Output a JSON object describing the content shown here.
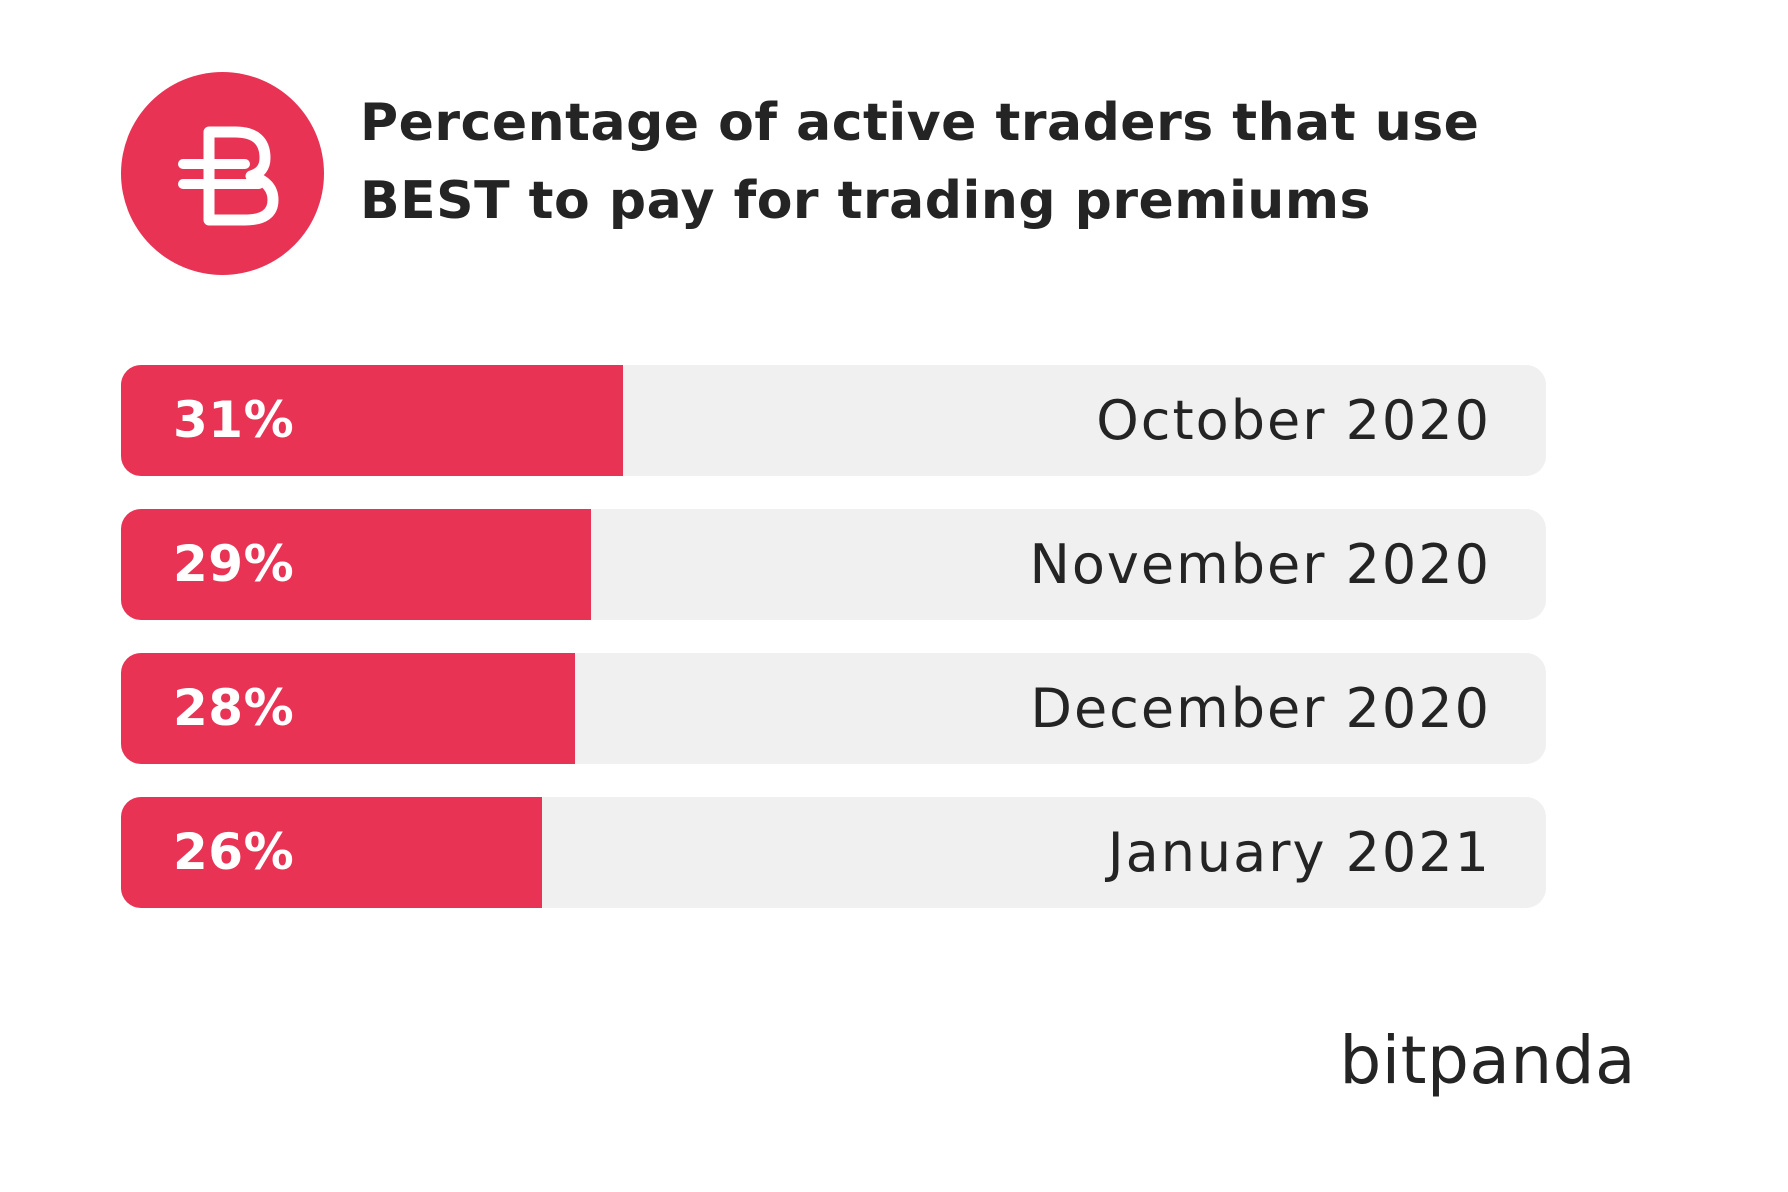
{
  "title_line1": "Percentage of active traders that use",
  "title_line2": "BEST to pay for trading premiums",
  "brand": "bitpanda",
  "logo_icon": "best-token-icon",
  "colors": {
    "accent": "#e83355",
    "track": "#f0f0f0",
    "text": "#242424"
  },
  "chart_data": {
    "type": "bar",
    "orientation": "horizontal",
    "title": "Percentage of active traders that use BEST to pay for trading premiums",
    "categories": [
      "October 2020",
      "November 2020",
      "December 2020",
      "January 2021"
    ],
    "values": [
      31,
      29,
      28,
      26
    ],
    "value_labels": [
      "31%",
      "29%",
      "28%",
      "26%"
    ],
    "unit": "%",
    "grid": false,
    "legend": "none"
  }
}
